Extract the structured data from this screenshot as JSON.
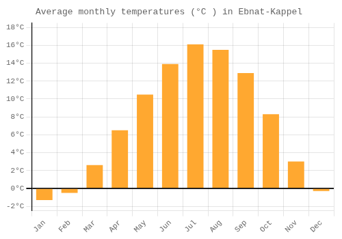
{
  "chart_data": {
    "type": "bar",
    "title": "Average monthly temperatures (°C ) in Ebnat-Kappel",
    "categories": [
      "Jan",
      "Feb",
      "Mar",
      "Apr",
      "May",
      "Jun",
      "Jul",
      "Aug",
      "Sep",
      "Oct",
      "Nov",
      "Dec"
    ],
    "values": [
      -1.3,
      -0.5,
      2.6,
      6.5,
      10.5,
      13.9,
      16.1,
      15.5,
      12.9,
      8.3,
      3.0,
      -0.3
    ],
    "color": "#FFA830",
    "ylim": [
      -2.5,
      18.5
    ],
    "yticks": [
      {
        "value": -2,
        "label": "-2°C"
      },
      {
        "value": 0,
        "label": "0°C"
      },
      {
        "value": 2,
        "label": "2°C"
      },
      {
        "value": 4,
        "label": "4°C"
      },
      {
        "value": 6,
        "label": "6°C"
      },
      {
        "value": 8,
        "label": "8°C"
      },
      {
        "value": 10,
        "label": "10°C"
      },
      {
        "value": 12,
        "label": "12°C"
      },
      {
        "value": 14,
        "label": "14°C"
      },
      {
        "value": 16,
        "label": "16°C"
      },
      {
        "value": 18,
        "label": "18°C"
      }
    ],
    "grid": true
  }
}
